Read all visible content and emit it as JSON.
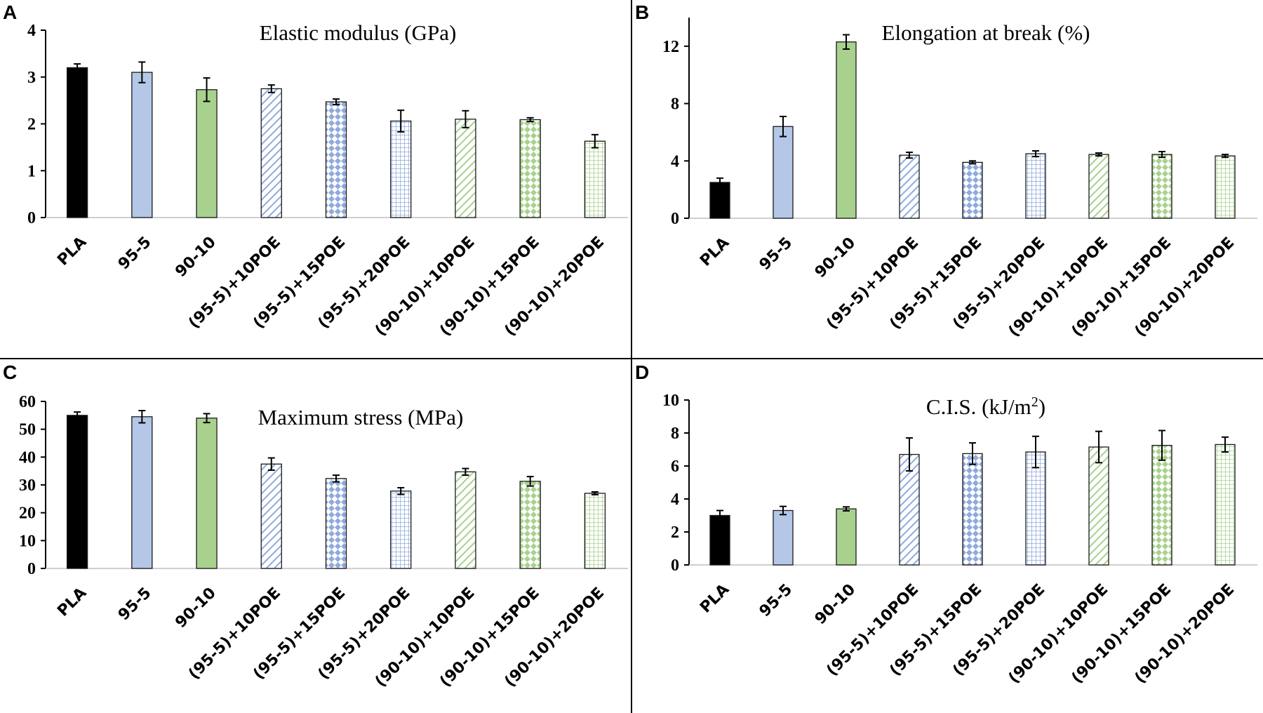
{
  "patterns": {
    "PLA": "solid",
    "95-5": "solid",
    "90-10": "solid",
    "(95-5)+10POE": "diagonal",
    "(95-5)+15POE": "diamond",
    "(95-5)+20POE": "grid",
    "(90-10)+10POE": "diagonal",
    "(90-10)+15POE": "diamond",
    "(90-10)+20POE": "grid"
  },
  "colors": {
    "PLA": "#000000",
    "95-5": "#b4c7e7",
    "90-10": "#a9d18e",
    "blue_pattern": "#8faadc",
    "green_pattern": "#a9d18e",
    "edge": "#1a1a1a"
  },
  "chart_data": [
    {
      "panel": "A",
      "type": "bar",
      "title": "Elastic modulus (GPa)",
      "categories": [
        "PLA",
        "95-5",
        "90-10",
        "(95-5)+10POE",
        "(95-5)+15POE",
        "(95-5)+20POE",
        "(90-10)+10POE",
        "(90-10)+15POE",
        "(90-10)+20POE"
      ],
      "values": [
        3.2,
        3.1,
        2.73,
        2.75,
        2.47,
        2.06,
        2.1,
        2.09,
        1.63
      ],
      "errors": [
        0.08,
        0.22,
        0.25,
        0.08,
        0.06,
        0.23,
        0.18,
        0.04,
        0.14
      ],
      "ylim": [
        0,
        4
      ],
      "yticks": [
        "0",
        "1",
        "2",
        "3",
        "4"
      ],
      "xlabel": "",
      "ylabel": "",
      "grid": false
    },
    {
      "panel": "B",
      "type": "bar",
      "title": "Elongation at break (%)",
      "categories": [
        "PLA",
        "95-5",
        "90-10",
        "(95-5)+10POE",
        "(95-5)+15POE",
        "(95-5)+20POE",
        "(90-10)+10POE",
        "(90-10)+15POE",
        "(90-10)+20POE"
      ],
      "values": [
        2.5,
        6.4,
        12.3,
        4.4,
        3.9,
        4.5,
        4.45,
        4.45,
        4.35
      ],
      "errors": [
        0.3,
        0.7,
        0.5,
        0.2,
        0.1,
        0.2,
        0.1,
        0.2,
        0.1
      ],
      "ylim": [
        0,
        14
      ],
      "yticks": [
        "0",
        "4",
        "8",
        "12"
      ],
      "xlabel": "",
      "ylabel": "",
      "grid": false
    },
    {
      "panel": "C",
      "type": "bar",
      "title": "Maximum stress (MPa)",
      "categories": [
        "PLA",
        "95-5",
        "90-10",
        "(95-5)+10POE",
        "(95-5)+15POE",
        "(95-5)+20POE",
        "(90-10)+10POE",
        "(90-10)+15POE",
        "(90-10)+20POE"
      ],
      "values": [
        55,
        54.5,
        54,
        37.5,
        32.3,
        27.8,
        34.7,
        31.3,
        27
      ],
      "errors": [
        1.2,
        2.2,
        1.6,
        2.2,
        1.2,
        1.2,
        1.2,
        1.7,
        0.5
      ],
      "ylim": [
        0,
        60
      ],
      "yticks": [
        "0",
        "10",
        "20",
        "30",
        "40",
        "50",
        "60"
      ],
      "xlabel": "",
      "ylabel": "",
      "grid": false
    },
    {
      "panel": "D",
      "type": "bar",
      "title": "C.I.S. (kJ/m",
      "title_sup": "2",
      "title_end": ")",
      "categories": [
        "PLA",
        "95-5",
        "90-10",
        "(95-5)+10POE",
        "(95-5)+15POE",
        "(95-5)+20POE",
        "(90-10)+10POE",
        "(90-10)+15POE",
        "(90-10)+20POE"
      ],
      "values": [
        3,
        3.3,
        3.4,
        6.7,
        6.75,
        6.85,
        7.15,
        7.25,
        7.3
      ],
      "errors": [
        0.3,
        0.25,
        0.12,
        1.0,
        0.65,
        0.95,
        0.95,
        0.9,
        0.45
      ],
      "ylim": [
        0,
        10
      ],
      "yticks": [
        "0",
        "2",
        "4",
        "6",
        "8",
        "10"
      ],
      "xlabel": "",
      "ylabel": "",
      "grid": false
    }
  ]
}
